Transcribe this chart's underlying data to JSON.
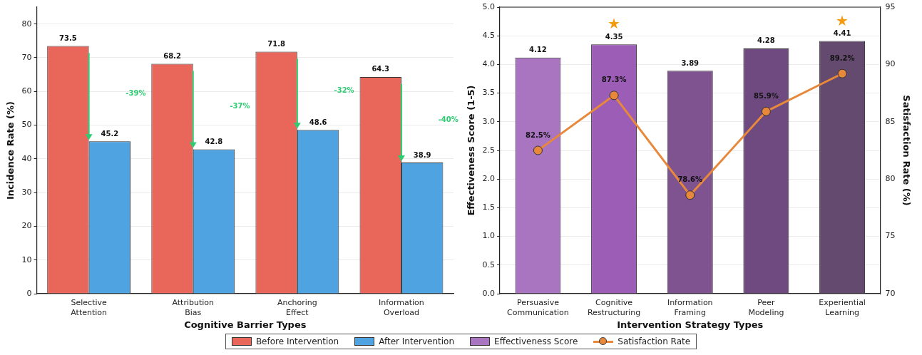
{
  "chart_data": [
    {
      "type": "bar",
      "xlabel": "Cognitive Barrier Types",
      "ylabel": "Incidence Rate (%)",
      "categories": [
        "Selective Attention",
        "Attribution Bias",
        "Anchoring Effect",
        "Information Overload"
      ],
      "series": [
        {
          "name": "Before Intervention",
          "color": "#e8675a",
          "values": [
            73.5,
            68.2,
            71.8,
            64.3
          ]
        },
        {
          "name": "After Intervention",
          "color": "#4fa3e0",
          "values": [
            45.2,
            42.8,
            48.6,
            38.9
          ]
        }
      ],
      "ylim": [
        0,
        85
      ],
      "yticks": [
        0,
        10,
        20,
        30,
        40,
        50,
        60,
        70,
        80
      ],
      "grid": "y",
      "data_labels": true,
      "legend": "bottom",
      "annotations": [
        "-39%",
        "-37%",
        "-32%",
        "-40%"
      ]
    },
    {
      "type": "bar",
      "xlabel": "Intervention Strategy Types",
      "ylabel": "Effectiveness Score (1-5)",
      "y2label": "Satisfaction Rate (%)",
      "categories": [
        "Persuasive Communication",
        "Cognitive Restructuring",
        "Information Framing",
        "Peer Modeling",
        "Experiential Learning"
      ],
      "series": [
        {
          "name": "Effectiveness Score",
          "color": "#a974c0",
          "colors": [
            "#a974c0",
            "#9b5db5",
            "#7f5290",
            "#6e4a80",
            "#634a6e"
          ],
          "values": [
            4.12,
            4.35,
            3.89,
            4.28,
            4.41
          ],
          "value_labels": [
            "4.12",
            "4.35",
            "3.89",
            "4.28",
            "4.41"
          ]
        },
        {
          "name": "Satisfaction Rate",
          "type": "line",
          "axis": "y2",
          "color": "#e8883a",
          "marker": "circle",
          "values": [
            82.5,
            87.3,
            78.6,
            85.9,
            89.2
          ],
          "value_labels": [
            "82.5%",
            "87.3%",
            "78.6%",
            "85.9%",
            "89.2%"
          ]
        }
      ],
      "ylim": [
        0,
        5
      ],
      "yticks": [
        {
          "value": 0,
          "label": "0.0"
        },
        {
          "value": 0.5,
          "label": "0.5"
        },
        {
          "value": 1,
          "label": "1.0"
        },
        {
          "value": 1.5,
          "label": "1.5"
        },
        {
          "value": 2,
          "label": "2.0"
        },
        {
          "value": 2.5,
          "label": "2.5"
        },
        {
          "value": 3,
          "label": "3.0"
        },
        {
          "value": 3.5,
          "label": "3.5"
        },
        {
          "value": 4,
          "label": "4.0"
        },
        {
          "value": 4.5,
          "label": "4.5"
        },
        {
          "value": 5,
          "label": "5.0"
        }
      ],
      "y2lim": [
        70,
        95
      ],
      "y2ticks": [
        70,
        75,
        80,
        85,
        90,
        95
      ],
      "grid": "y",
      "legend": "bottom",
      "annotations": [
        {
          "text": "★",
          "x": "Cognitive Restructuring",
          "y": 4.35
        },
        {
          "text": "★",
          "x": "Experiential Learning",
          "y": 4.41
        }
      ]
    }
  ]
}
